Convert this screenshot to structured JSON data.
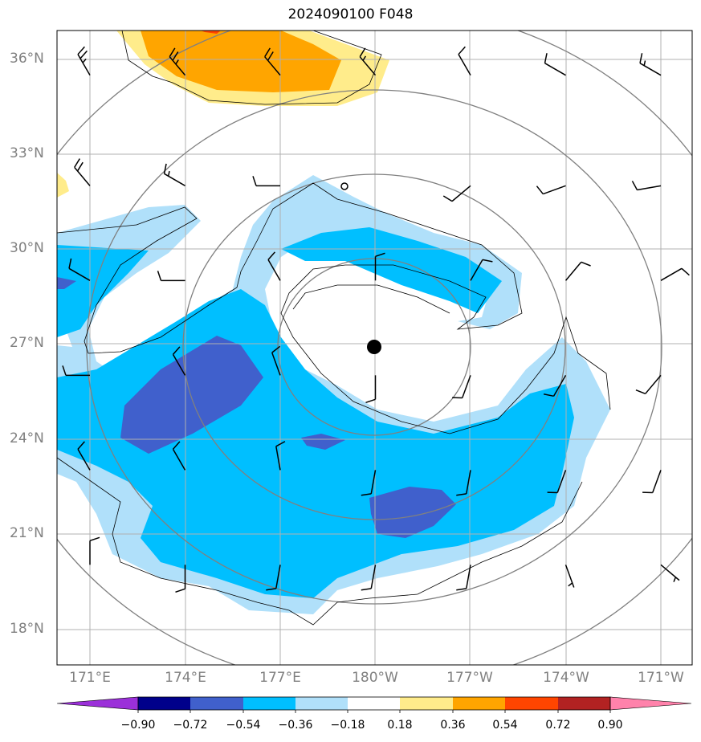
{
  "title": "2024090100 F048",
  "lat_labels": [
    "36°N",
    "33°N",
    "30°N",
    "27°N",
    "24°N",
    "21°N",
    "18°N"
  ],
  "lon_labels": [
    "171°E",
    "174°E",
    "177°E",
    "180°W",
    "177°W",
    "174°W",
    "171°W"
  ],
  "colorbar": {
    "ticks": [
      "−0.90",
      "−0.72",
      "−0.54",
      "−0.36",
      "−0.18",
      "0.18",
      "0.36",
      "0.54",
      "0.72",
      "0.90"
    ],
    "colors": [
      "#9b30d9",
      "#00008b",
      "#4060cc",
      "#00bfff",
      "#b0e0fa",
      "#ffffff",
      "#ffec8b",
      "#ffa500",
      "#ff4500",
      "#b22222",
      "#ff82ab"
    ]
  },
  "fill_colors": {
    "light_blue": "#b0e0fa",
    "deep_sky_blue": "#00bfff",
    "royal_blue": "#4060cc",
    "light_yellow": "#ffec8b",
    "orange": "#ffa500",
    "red_orange": "#ff4500"
  },
  "storm_center_marker": "filled-circle",
  "wind_barbs": [
    {
      "lat": 35.5,
      "lon": 171,
      "dir": 330,
      "speed": 25
    },
    {
      "lat": 35.5,
      "lon": 174,
      "dir": 320,
      "speed": 25
    },
    {
      "lat": 35.5,
      "lon": 177,
      "dir": 320,
      "speed": 20
    },
    {
      "lat": 35.5,
      "lon": -180,
      "dir": 320,
      "speed": 15
    },
    {
      "lat": 35.5,
      "lon": -177,
      "dir": 330,
      "speed": 10
    },
    {
      "lat": 35.5,
      "lon": -174,
      "dir": 300,
      "speed": 10
    },
    {
      "lat": 35.5,
      "lon": -171,
      "dir": 300,
      "speed": 15
    },
    {
      "lat": 32,
      "lon": 171,
      "dir": 320,
      "speed": 20
    },
    {
      "lat": 32,
      "lon": 174,
      "dir": 300,
      "speed": 15
    },
    {
      "lat": 32,
      "lon": 177,
      "dir": 270,
      "speed": 10
    },
    {
      "lat": 32,
      "lon": -177,
      "dir": 230,
      "speed": 10
    },
    {
      "lat": 32,
      "lon": -174,
      "dir": 250,
      "speed": 10
    },
    {
      "lat": 32,
      "lon": -171,
      "dir": 260,
      "speed": 10
    },
    {
      "lat": 29,
      "lon": 171,
      "dir": 300,
      "speed": 10
    },
    {
      "lat": 29,
      "lon": 174,
      "dir": 270,
      "speed": 10
    },
    {
      "lat": 29,
      "lon": 177,
      "dir": 330,
      "speed": 10
    },
    {
      "lat": 29,
      "lon": -180,
      "dir": 0,
      "speed": 10
    },
    {
      "lat": 29,
      "lon": -177,
      "dir": 30,
      "speed": 10
    },
    {
      "lat": 29,
      "lon": -174,
      "dir": 40,
      "speed": 10
    },
    {
      "lat": 29,
      "lon": -171,
      "dir": 60,
      "speed": 10
    },
    {
      "lat": 26,
      "lon": 171,
      "dir": 270,
      "speed": 10
    },
    {
      "lat": 26,
      "lon": 174,
      "dir": 330,
      "speed": 10
    },
    {
      "lat": 26,
      "lon": 177,
      "dir": 340,
      "speed": 10
    },
    {
      "lat": 26,
      "lon": -180,
      "dir": 180,
      "speed": 10
    },
    {
      "lat": 26,
      "lon": -177,
      "dir": 200,
      "speed": 10
    },
    {
      "lat": 26,
      "lon": -174,
      "dir": 210,
      "speed": 10
    },
    {
      "lat": 26,
      "lon": -171,
      "dir": 220,
      "speed": 10
    },
    {
      "lat": 23,
      "lon": 171,
      "dir": 330,
      "speed": 10
    },
    {
      "lat": 23,
      "lon": 174,
      "dir": 330,
      "speed": 10
    },
    {
      "lat": 23,
      "lon": 177,
      "dir": 350,
      "speed": 10
    },
    {
      "lat": 23,
      "lon": -180,
      "dir": 190,
      "speed": 10
    },
    {
      "lat": 23,
      "lon": -177,
      "dir": 190,
      "speed": 10
    },
    {
      "lat": 23,
      "lon": -174,
      "dir": 200,
      "speed": 10
    },
    {
      "lat": 23,
      "lon": -171,
      "dir": 200,
      "speed": 10
    },
    {
      "lat": 20,
      "lon": 171,
      "dir": 0,
      "speed": 10
    },
    {
      "lat": 20,
      "lon": 174,
      "dir": 180,
      "speed": 10
    },
    {
      "lat": 20,
      "lon": 177,
      "dir": 190,
      "speed": 10
    },
    {
      "lat": 20,
      "lon": -180,
      "dir": 190,
      "speed": 10
    },
    {
      "lat": 20,
      "lon": -177,
      "dir": 190,
      "speed": 10
    },
    {
      "lat": 20,
      "lon": -174,
      "dir": 160,
      "speed": 5
    },
    {
      "lat": 20,
      "lon": -171,
      "dir": 130,
      "speed": 5
    }
  ]
}
